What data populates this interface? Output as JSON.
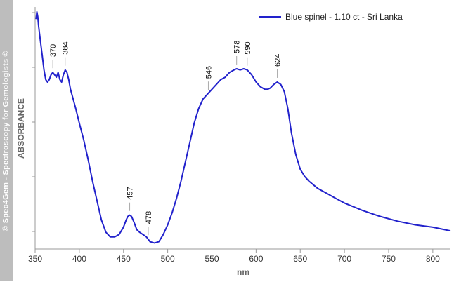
{
  "watermark": "© Spec4Gem - Spectroscopy for Gemologists ©",
  "chart_data": {
    "type": "line",
    "title": "",
    "xlabel": "nm",
    "ylabel": "ABSORBANCE",
    "xlim": [
      350,
      820
    ],
    "ylim": [
      0,
      1
    ],
    "x_ticks": [
      350,
      400,
      450,
      500,
      550,
      600,
      650,
      700,
      750,
      800
    ],
    "grid": false,
    "legend_position": "top-right",
    "colors": {
      "series": "#2222cc",
      "sidebar": "#bdbdbd"
    },
    "series": [
      {
        "name": "Blue spinel - 1.10 ct - Sri Lanka",
        "x": [
          351,
          352,
          353,
          354,
          356,
          358,
          360,
          362,
          364,
          366,
          368,
          370,
          372,
          374,
          376,
          378,
          380,
          382,
          384,
          386,
          388,
          390,
          393,
          396,
          400,
          405,
          410,
          415,
          420,
          425,
          430,
          435,
          440,
          445,
          450,
          453,
          455,
          457,
          459,
          462,
          465,
          468,
          472,
          476,
          478,
          480,
          485,
          490,
          495,
          500,
          505,
          510,
          515,
          520,
          525,
          530,
          535,
          540,
          545,
          550,
          555,
          560,
          565,
          570,
          575,
          578,
          582,
          586,
          590,
          595,
          600,
          605,
          610,
          613,
          616,
          620,
          624,
          628,
          632,
          636,
          640,
          645,
          650,
          655,
          660,
          670,
          680,
          690,
          700,
          720,
          740,
          760,
          780,
          800,
          820
        ],
        "y": [
          0.95,
          0.98,
          0.96,
          0.92,
          0.86,
          0.8,
          0.74,
          0.7,
          0.69,
          0.7,
          0.72,
          0.73,
          0.72,
          0.71,
          0.73,
          0.7,
          0.69,
          0.72,
          0.74,
          0.73,
          0.7,
          0.66,
          0.62,
          0.58,
          0.52,
          0.45,
          0.37,
          0.28,
          0.2,
          0.12,
          0.07,
          0.05,
          0.05,
          0.06,
          0.09,
          0.12,
          0.135,
          0.14,
          0.135,
          0.11,
          0.08,
          0.07,
          0.06,
          0.05,
          0.04,
          0.03,
          0.025,
          0.03,
          0.06,
          0.1,
          0.15,
          0.21,
          0.28,
          0.36,
          0.44,
          0.52,
          0.58,
          0.62,
          0.64,
          0.66,
          0.68,
          0.7,
          0.71,
          0.73,
          0.74,
          0.745,
          0.74,
          0.745,
          0.74,
          0.72,
          0.69,
          0.67,
          0.66,
          0.66,
          0.665,
          0.68,
          0.69,
          0.68,
          0.65,
          0.58,
          0.48,
          0.39,
          0.33,
          0.3,
          0.28,
          0.25,
          0.23,
          0.21,
          0.19,
          0.16,
          0.135,
          0.115,
          0.1,
          0.09,
          0.075
        ]
      }
    ],
    "annotations": [
      {
        "label": "370",
        "x": 370,
        "y": 0.73
      },
      {
        "label": "384",
        "x": 384,
        "y": 0.74
      },
      {
        "label": "457",
        "x": 457,
        "y": 0.14
      },
      {
        "label": "478",
        "x": 478,
        "y": 0.04
      },
      {
        "label": "546",
        "x": 546,
        "y": 0.64
      },
      {
        "label": "578",
        "x": 578,
        "y": 0.745
      },
      {
        "label": "590",
        "x": 590,
        "y": 0.74
      },
      {
        "label": "624",
        "x": 624,
        "y": 0.69
      }
    ]
  }
}
